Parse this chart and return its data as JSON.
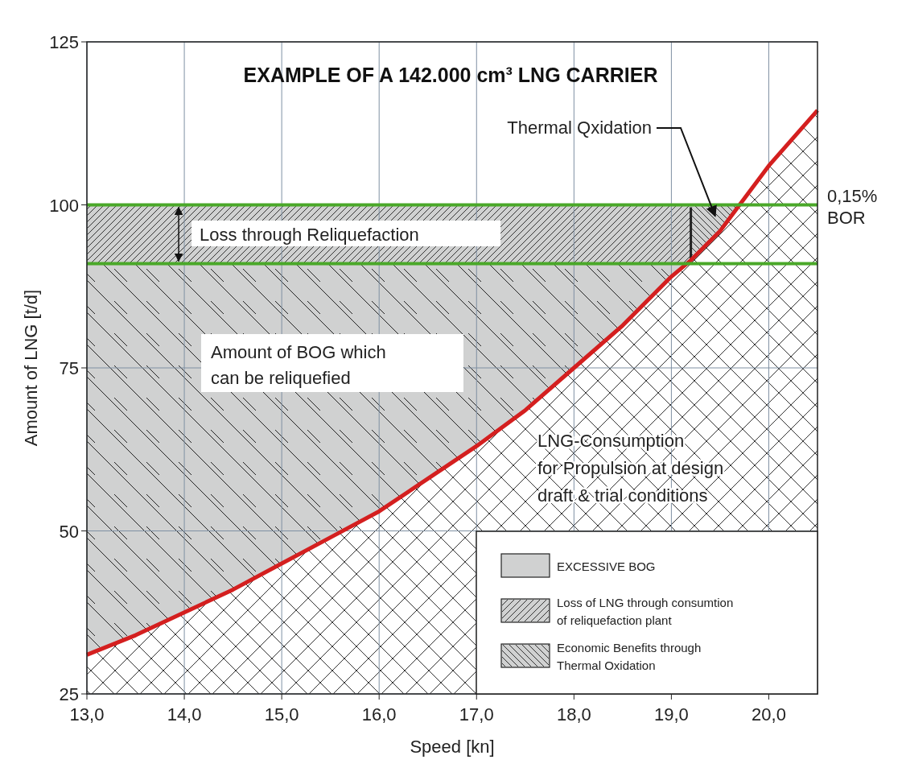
{
  "chart_data": {
    "type": "area",
    "title": "EXAMPLE OF A 142.000 cm³ LNG CARRIER",
    "xlabel": "Speed [kn]",
    "ylabel": "Amount of LNG [t/d]",
    "xlim": [
      13,
      20.5
    ],
    "ylim": [
      25,
      125
    ],
    "xticks": [
      {
        "value": 13,
        "label": "13,0"
      },
      {
        "value": 14,
        "label": "14,0"
      },
      {
        "value": 15,
        "label": "15,0"
      },
      {
        "value": 16,
        "label": "16,0"
      },
      {
        "value": 17,
        "label": "17,0"
      },
      {
        "value": 18,
        "label": "18,0"
      },
      {
        "value": 19,
        "label": "19,0"
      },
      {
        "value": 20,
        "label": "20,0"
      }
    ],
    "yticks": [
      25,
      50,
      75,
      100,
      125
    ],
    "grid": true,
    "legend": "bottom right",
    "series": [
      {
        "name": "EXCESSIVE BOG",
        "color": "#d0d1d1",
        "x": [
          13,
          19.15
        ],
        "values": [
          91,
          91
        ]
      },
      {
        "name": "Loss of LNG through consumtion of reliquefaction plant",
        "color": "#d0d1d1",
        "x": [
          13,
          19.2
        ],
        "values": [
          100,
          100
        ]
      },
      {
        "name": "Economic Benefits  through Thermal Oxidation",
        "color": "#d0d1d1",
        "x": [
          19.2,
          19.7
        ],
        "values": [
          100,
          100
        ]
      },
      {
        "color": "#d41f1f",
        "x": [
          13,
          13.5,
          14,
          14.5,
          15,
          15.5,
          16,
          16.5,
          17,
          17.5,
          18,
          18.5,
          19,
          19.2,
          19.5,
          19.7,
          20,
          20.5
        ],
        "values": [
          31,
          34,
          37.5,
          41,
          45,
          49,
          53,
          58,
          63,
          68.5,
          75,
          81.5,
          89,
          91.5,
          96,
          100,
          106,
          114.5
        ]
      }
    ],
    "ref_lines": [
      {
        "axis": "y",
        "value": 100,
        "label": "0,15%\nBOR",
        "color": "#4aa829"
      },
      {
        "axis": "y",
        "value": 91,
        "color": "#4aa829"
      }
    ],
    "annotations": [
      "Thermal Qxidation",
      "Loss through Reliquefaction",
      "Amount of  BOG which\ncan be reliquefied",
      "LNG-Consumption\nfor Propulsion at design\ndraft & trial conditions"
    ]
  }
}
